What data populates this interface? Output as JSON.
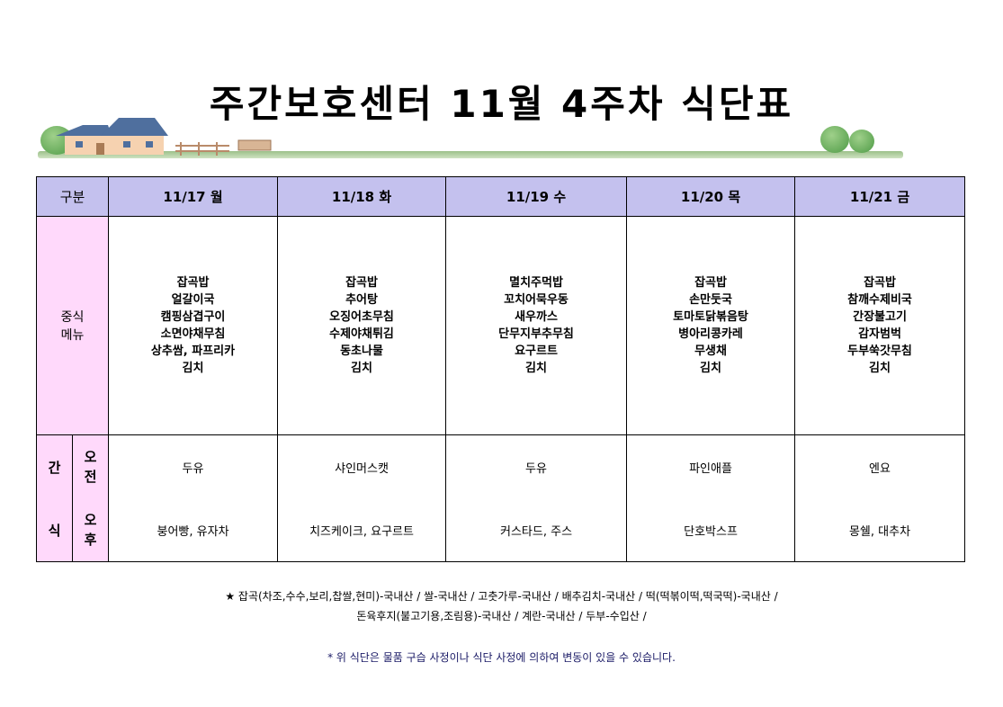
{
  "title": "주간보호센터 11월 4주차 식단표",
  "header": {
    "label": "구분",
    "days": [
      "11/17 월",
      "11/18 화",
      "11/19 수",
      "11/20 목",
      "11/21 금"
    ]
  },
  "main_label": [
    "중식",
    "메뉴"
  ],
  "menus": [
    [
      "잡곡밥",
      "얼갈이국",
      "캠핑삼겹구이",
      "소면야채무침",
      "상추쌈, 파프리카",
      "김치"
    ],
    [
      "잡곡밥",
      "추어탕",
      "오징어초무침",
      "수제야채튀김",
      "동초나물",
      "김치"
    ],
    [
      "멸치주먹밥",
      "꼬치어묵우동",
      "새우까스",
      "단무지부추무침",
      "요구르트",
      "김치"
    ],
    [
      "잡곡밥",
      "손만둣국",
      "토마토닭볶음탕",
      "병아리콩카레",
      "무생채",
      "김치"
    ],
    [
      "잡곡밥",
      "참깨수제비국",
      "간장불고기",
      "감자범벅",
      "두부쑥갓무침",
      "김치"
    ]
  ],
  "snack_label": {
    "main": [
      "간",
      "식"
    ],
    "am": [
      "오",
      "전"
    ],
    "pm": [
      "오",
      "후"
    ]
  },
  "snacks": [
    {
      "am": "두유",
      "pm": "붕어빵, 유자차"
    },
    {
      "am": "샤인머스캣",
      "pm": "치즈케이크, 요구르트"
    },
    {
      "am": "두유",
      "pm": "커스타드, 주스"
    },
    {
      "am": "파인애플",
      "pm": "단호박스프"
    },
    {
      "am": "엔요",
      "pm": "몽쉘, 대추차"
    }
  ],
  "origin": [
    "★ 잡곡(차조,수수,보리,찹쌀,현미)-국내산 / 쌀-국내산 / 고춧가루-국내산 / 배추김치-국내산 / 떡(떡볶이떡,떡국떡)-국내산 /",
    "돈육후지(불고기용,조림용)-국내산 / 계란-국내산 / 두부-수입산 /"
  ],
  "note": "* 위 식단은 물품 구습 사정이나 식단 사정에 의하여 변동이 있을 수 있습니다.",
  "colors": {
    "header_bg": "#c4c1ee",
    "label_bg": "#ffd9fb",
    "note": "#1a1a66"
  }
}
